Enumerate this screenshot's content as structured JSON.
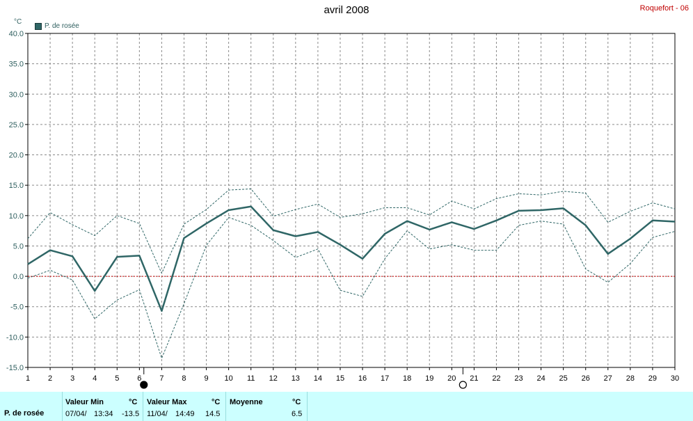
{
  "header": {
    "title": "avril 2008",
    "station": "Roquefort - 06",
    "unit": "°C"
  },
  "chart_data": {
    "type": "line",
    "legend": [
      "P. de rosée"
    ],
    "x": [
      1,
      2,
      3,
      4,
      5,
      6,
      7,
      8,
      9,
      10,
      11,
      12,
      13,
      14,
      15,
      16,
      17,
      18,
      19,
      20,
      21,
      22,
      23,
      24,
      25,
      26,
      27,
      28,
      29,
      30
    ],
    "ylim": [
      -15,
      40
    ],
    "yticks": [
      "40.0",
      "35.0",
      "30.0",
      "25.0",
      "20.0",
      "15.0",
      "10.0",
      "5.0",
      "0.0",
      "-5.0",
      "-10.0",
      "-15.0"
    ],
    "grid": true,
    "zero_line": 0,
    "series": [
      {
        "name": "P. de rosée",
        "role": "mean",
        "color": "#2f6666",
        "values": [
          2.0,
          4.3,
          3.3,
          -2.4,
          3.2,
          3.4,
          -5.7,
          6.3,
          8.7,
          10.9,
          11.5,
          7.6,
          6.6,
          7.3,
          5.2,
          2.9,
          7.0,
          9.1,
          7.7,
          8.9,
          7.8,
          9.2,
          10.8,
          10.9,
          11.2,
          8.4,
          3.7,
          6.2,
          9.2,
          9.0
        ]
      },
      {
        "role": "max",
        "color": "#2f6666",
        "values": [
          6.2,
          10.5,
          8.5,
          6.7,
          10.0,
          8.7,
          0.5,
          8.6,
          11.0,
          14.2,
          14.4,
          9.9,
          11.0,
          11.9,
          9.7,
          10.3,
          11.3,
          11.3,
          10.1,
          12.4,
          11.1,
          12.8,
          13.6,
          13.4,
          14.0,
          13.7,
          8.9,
          10.7,
          12.1,
          11.1
        ]
      },
      {
        "role": "min",
        "color": "#2f6666",
        "values": [
          -0.3,
          1.0,
          -0.6,
          -7.0,
          -3.9,
          -2.2,
          -13.5,
          -4.5,
          5.1,
          9.7,
          8.4,
          5.9,
          3.1,
          4.5,
          -2.3,
          -3.3,
          2.9,
          7.5,
          4.5,
          5.2,
          4.3,
          4.3,
          8.4,
          9.1,
          8.6,
          1.2,
          -1.0,
          2.1,
          6.4,
          7.4
        ]
      }
    ],
    "moon_markers": [
      {
        "x": 6.2,
        "phase": "new"
      },
      {
        "x": 20.5,
        "phase": "full"
      }
    ]
  },
  "footer": {
    "series_label": "P. de rosée",
    "min_header": "Valeur Min",
    "min_unit": "°C",
    "min_date": "07/04/",
    "min_time": "13:34",
    "min_value": "-13.5",
    "max_header": "Valeur Max",
    "max_unit": "°C",
    "max_date": "11/04/",
    "max_time": "14:49",
    "max_value": "14.5",
    "avg_header": "Moyenne",
    "avg_unit": "°C",
    "avg_value": "6.5"
  }
}
